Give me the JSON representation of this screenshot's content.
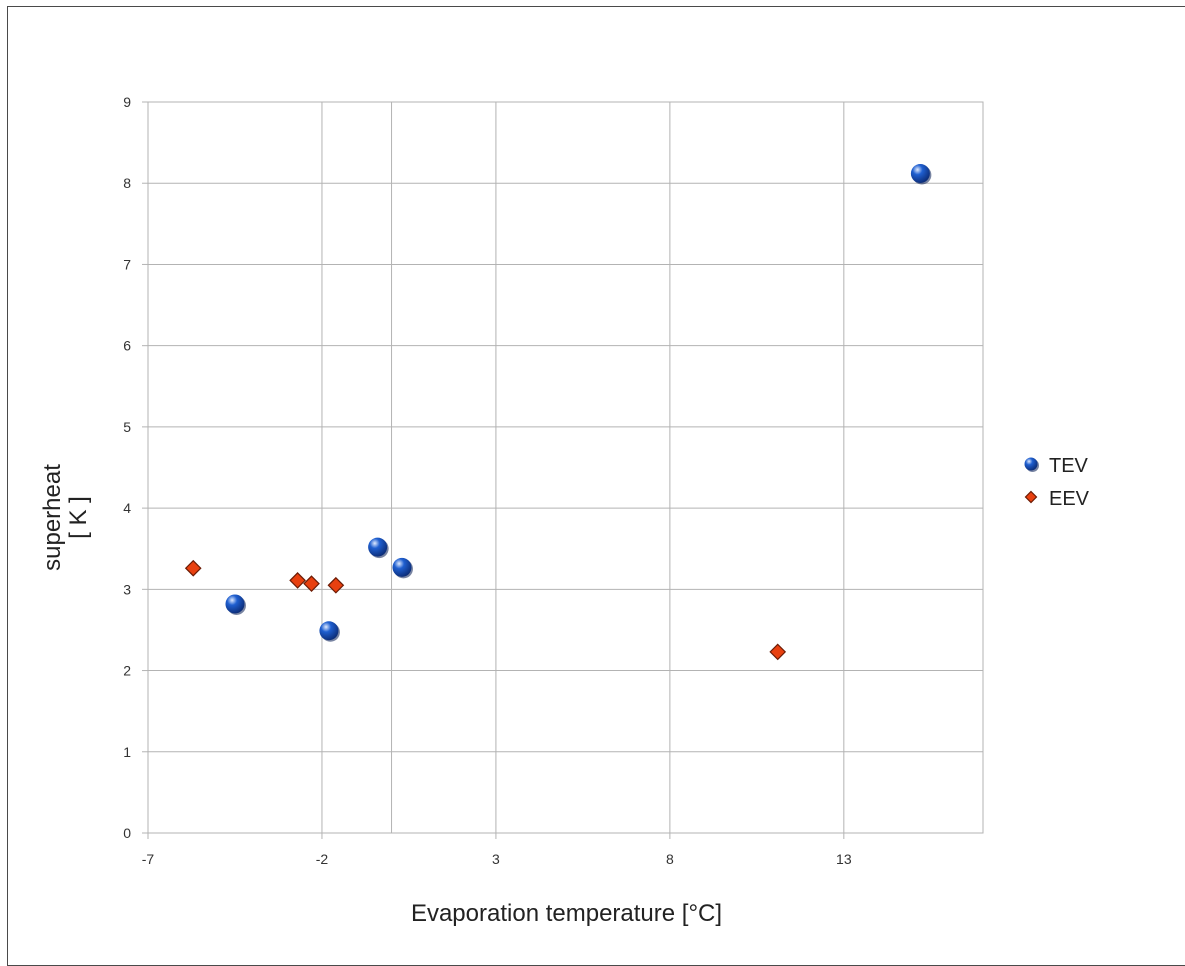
{
  "chart_data": {
    "type": "scatter",
    "title": "",
    "xlabel": "Evaporation temperature [°C]",
    "ylabel": [
      "superheat",
      "[ K ]"
    ],
    "xlim": [
      -7,
      17
    ],
    "ylim": [
      0,
      9
    ],
    "xticks": [
      -7,
      -2,
      3,
      8,
      13
    ],
    "yticks": [
      0,
      1,
      2,
      3,
      4,
      5,
      6,
      7,
      8,
      9
    ],
    "xtick_labels": [
      "-7",
      "-2",
      "3",
      "8",
      "13"
    ],
    "ytick_labels": [
      "0",
      "1",
      "2",
      "3",
      "4",
      "5",
      "6",
      "7",
      "8",
      "9"
    ],
    "extra_vertical_gridlines": [
      0
    ],
    "grid": true,
    "legend_position": "right",
    "series": [
      {
        "name": "TEV",
        "marker": "sphere",
        "color": "#1f5fd0",
        "points": [
          {
            "x": -4.5,
            "y": 2.82
          },
          {
            "x": -1.8,
            "y": 2.49
          },
          {
            "x": -0.4,
            "y": 3.52
          },
          {
            "x": 0.3,
            "y": 3.27
          },
          {
            "x": 15.2,
            "y": 8.12
          }
        ]
      },
      {
        "name": "EEV",
        "marker": "diamond",
        "color": "#e8400f",
        "points": [
          {
            "x": -5.7,
            "y": 3.26
          },
          {
            "x": -2.7,
            "y": 3.11
          },
          {
            "x": -2.3,
            "y": 3.07
          },
          {
            "x": -1.6,
            "y": 3.05
          },
          {
            "x": 11.1,
            "y": 2.23
          }
        ]
      }
    ]
  }
}
